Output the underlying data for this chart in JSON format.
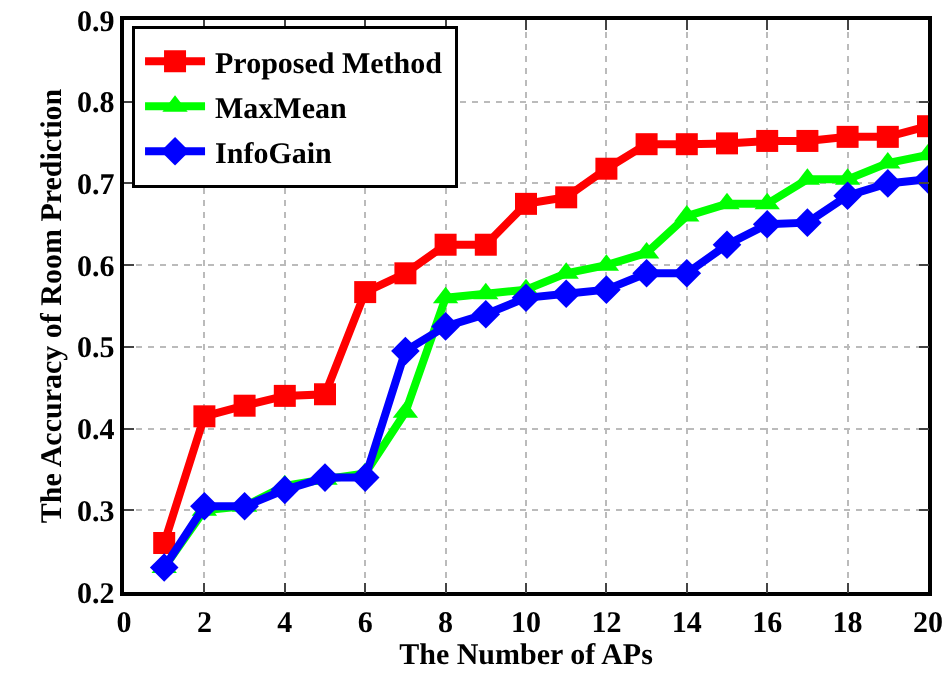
{
  "chart_data": {
    "type": "line",
    "xlabel": "The Number of APs",
    "ylabel": "The Accuracy of Room Prediction",
    "x": [
      1,
      2,
      3,
      4,
      5,
      6,
      7,
      8,
      9,
      10,
      11,
      12,
      13,
      14,
      15,
      16,
      17,
      18,
      19,
      20
    ],
    "series": [
      {
        "name": "Proposed Method",
        "color": "#ff0000",
        "marker": "square",
        "values": [
          0.26,
          0.415,
          0.428,
          0.44,
          0.442,
          0.567,
          0.59,
          0.625,
          0.625,
          0.675,
          0.683,
          0.718,
          0.748,
          0.748,
          0.749,
          0.752,
          0.752,
          0.757,
          0.757,
          0.77
        ]
      },
      {
        "name": "MaxMean",
        "color": "#00ff00",
        "marker": "triangle",
        "values": [
          0.23,
          0.3,
          0.305,
          0.33,
          0.338,
          0.345,
          0.42,
          0.56,
          0.565,
          0.57,
          0.59,
          0.6,
          0.615,
          0.66,
          0.675,
          0.675,
          0.705,
          0.705,
          0.725,
          0.735
        ]
      },
      {
        "name": "InfoGain",
        "color": "#0000ff",
        "marker": "diamond",
        "values": [
          0.23,
          0.305,
          0.305,
          0.325,
          0.34,
          0.34,
          0.495,
          0.525,
          0.54,
          0.56,
          0.565,
          0.57,
          0.59,
          0.59,
          0.625,
          0.65,
          0.652,
          0.685,
          0.7,
          0.705
        ]
      }
    ],
    "xlim": [
      0,
      20
    ],
    "xticks": [
      0,
      2,
      4,
      6,
      8,
      10,
      12,
      14,
      16,
      18,
      20
    ],
    "ylim": [
      0.2,
      0.9
    ],
    "yticks": [
      0.2,
      0.3,
      0.4,
      0.5,
      0.6,
      0.7,
      0.8,
      0.9
    ],
    "grid": true,
    "legend": "top left",
    "line_style": "solid"
  }
}
